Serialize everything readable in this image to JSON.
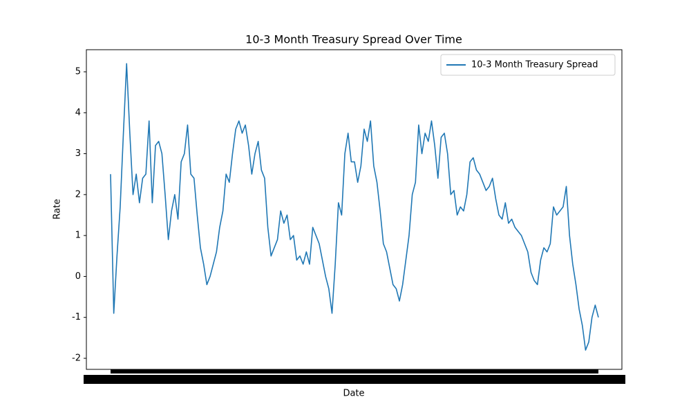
{
  "chart_data": {
    "type": "line",
    "title": "10-3 Month Treasury Spread Over Time",
    "x_label": "Date",
    "y_label": "Rate",
    "categories": [
      null,
      null,
      null,
      null,
      null,
      null,
      null,
      null,
      null,
      null,
      null,
      null,
      null,
      null,
      null,
      null,
      null,
      null,
      null,
      null,
      null,
      null,
      null,
      null,
      null,
      null,
      null,
      null,
      null,
      null,
      null,
      null,
      null,
      null,
      null,
      null,
      null,
      null,
      null,
      null,
      null,
      null,
      null,
      null,
      null,
      null,
      null,
      null,
      null,
      null,
      null,
      null,
      null,
      null,
      null,
      null,
      null,
      null,
      null,
      null,
      null,
      null,
      null,
      null,
      null,
      null,
      null,
      null,
      null,
      null,
      null,
      null,
      null,
      null,
      null,
      null,
      null,
      null,
      null,
      null,
      null,
      null,
      null,
      null,
      null,
      null,
      null,
      null,
      null,
      null,
      null,
      null,
      null,
      null,
      null,
      null,
      null,
      null,
      null,
      null,
      null,
      null,
      null,
      null,
      null,
      null,
      null,
      null,
      null,
      null,
      null,
      null,
      null,
      null,
      null,
      null,
      null,
      null,
      null,
      null,
      null,
      null,
      null,
      null,
      null,
      null,
      null,
      null,
      null,
      null,
      null,
      null,
      null,
      null,
      null,
      null,
      null,
      null,
      null,
      null,
      null,
      null,
      null,
      null,
      null,
      null,
      null,
      null,
      null,
      null,
      null,
      null,
      null
    ],
    "series": [
      {
        "name": "10-3 Month Treasury Spread",
        "color": "#1f77b4",
        "values": [
          2.5,
          -0.9,
          0.5,
          1.7,
          3.5,
          5.2,
          3.5,
          2.0,
          2.5,
          1.8,
          2.4,
          2.5,
          3.8,
          1.8,
          3.2,
          3.3,
          3.0,
          2.0,
          0.9,
          1.6,
          2.0,
          1.4,
          2.8,
          3.0,
          3.7,
          2.5,
          2.4,
          1.5,
          0.7,
          0.3,
          -0.2,
          0.0,
          0.3,
          0.6,
          1.2,
          1.6,
          2.5,
          2.3,
          3.0,
          3.6,
          3.8,
          3.5,
          3.7,
          3.2,
          2.5,
          3.0,
          3.3,
          2.6,
          2.4,
          1.2,
          0.5,
          0.7,
          0.9,
          1.6,
          1.3,
          1.5,
          0.9,
          1.0,
          0.4,
          0.5,
          0.3,
          0.6,
          0.3,
          1.2,
          1.0,
          0.8,
          0.4,
          0.0,
          -0.3,
          -0.9,
          0.3,
          1.8,
          1.5,
          3.0,
          3.5,
          2.8,
          2.8,
          2.3,
          2.7,
          3.6,
          3.3,
          3.8,
          2.7,
          2.3,
          1.6,
          0.8,
          0.6,
          0.2,
          -0.2,
          -0.3,
          -0.6,
          -0.2,
          0.4,
          1.0,
          2.0,
          2.3,
          3.7,
          3.0,
          3.5,
          3.3,
          3.8,
          3.2,
          2.4,
          3.4,
          3.5,
          3.0,
          2.0,
          2.1,
          1.5,
          1.7,
          1.6,
          2.0,
          2.8,
          2.9,
          2.6,
          2.5,
          2.3,
          2.1,
          2.2,
          2.4,
          1.9,
          1.5,
          1.4,
          1.8,
          1.3,
          1.4,
          1.2,
          1.1,
          1.0,
          0.8,
          0.6,
          0.1,
          -0.1,
          -0.2,
          0.4,
          0.7,
          0.6,
          0.8,
          1.7,
          1.5,
          1.6,
          1.7,
          2.2,
          1.0,
          0.3,
          -0.2,
          -0.8,
          -1.2,
          -1.8,
          -1.6,
          -1.0,
          -0.7,
          -1.0
        ]
      }
    ],
    "ylim": [
      -2.27,
      5.54
    ],
    "yticks": [
      -2,
      -1,
      0,
      1,
      2,
      3,
      4,
      5
    ],
    "legend": "upper right"
  }
}
